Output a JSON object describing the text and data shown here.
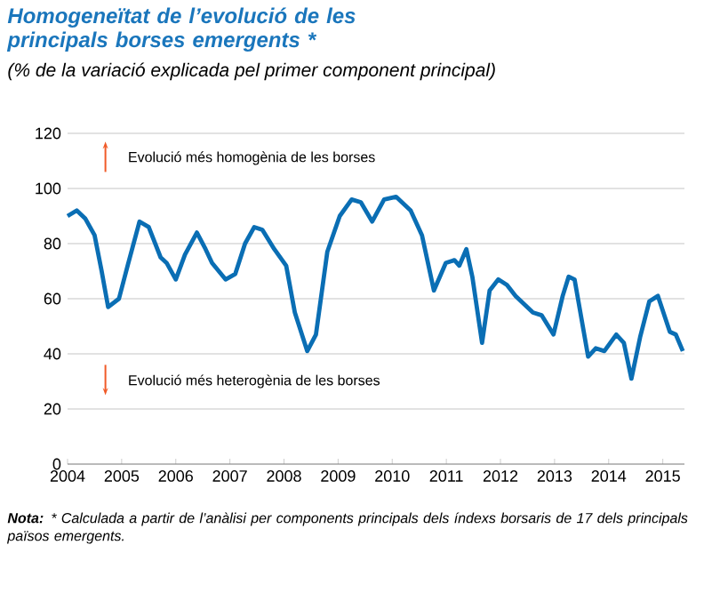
{
  "chart_data": {
    "type": "line",
    "title": "Homogeneïtat de l’evolució de les principals borses emergents *",
    "subtitle": "(% de la variació explicada pel primer component principal)",
    "annotations": [
      "Evolució més homogènia de les borses",
      "Evolució més heterogènia de les borses",
      "**Nota:** * Calculada a partir de l’anàlisi per components principals dels índexs borsaris de 17 dels principals països emergents."
    ],
    "series": [
      {
        "color": "#0a6eb4",
        "x": [
          2004.0,
          2004.17,
          2004.33,
          2004.5,
          2004.63,
          2004.75,
          2004.95,
          2005.11,
          2005.33,
          2005.5,
          2005.72,
          2005.83,
          2006.0,
          2006.17,
          2006.39,
          2006.55,
          2006.67,
          2006.92,
          2007.1,
          2007.28,
          2007.45,
          2007.6,
          2007.82,
          2008.04,
          2008.2,
          2008.43,
          2008.59,
          2008.8,
          2009.03,
          2009.25,
          2009.42,
          2009.63,
          2009.85,
          2010.07,
          2010.34,
          2010.55,
          2010.77,
          2010.99,
          2011.15,
          2011.24,
          2011.37,
          2011.48,
          2011.66,
          2011.8,
          2011.96,
          2012.12,
          2012.28,
          2012.44,
          2012.6,
          2012.76,
          2012.98,
          2013.15,
          2013.26,
          2013.37,
          2013.62,
          2013.76,
          2013.92,
          2014.14,
          2014.28,
          2014.42,
          2014.58,
          2014.75,
          2014.91,
          2015.13,
          2015.24,
          2015.37
        ],
        "values": [
          90,
          92,
          89,
          83,
          70,
          57,
          60,
          72,
          88,
          86,
          75,
          73,
          67,
          76,
          84,
          78,
          73,
          67,
          69,
          80,
          86,
          85,
          78,
          72,
          55,
          41,
          47,
          77,
          90,
          96,
          95,
          88,
          96,
          97,
          92,
          83,
          63,
          73,
          74,
          72,
          78,
          68,
          44,
          63,
          67,
          65,
          61,
          58,
          55,
          54,
          47,
          61,
          68,
          67,
          39,
          42,
          41,
          47,
          44,
          31,
          46,
          59,
          61,
          48,
          47,
          41
        ]
      }
    ],
    "xlim": [
      2004,
      2015.4
    ],
    "xticks": [
      2004,
      2005,
      2006,
      2007,
      2008,
      2009,
      2010,
      2011,
      2012,
      2013,
      2014,
      2015
    ],
    "ylim": [
      0,
      120
    ],
    "yticks": [
      0,
      20,
      40,
      60,
      80,
      100,
      120
    ],
    "grid": "y",
    "marker": "none",
    "line_style": "solid"
  }
}
